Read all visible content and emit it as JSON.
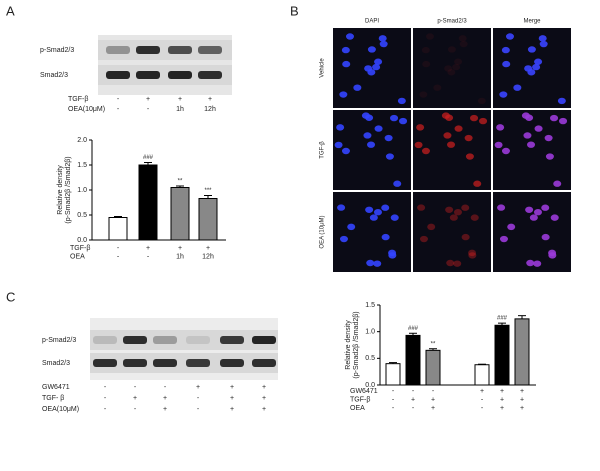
{
  "panels": {
    "A": {
      "label": "A",
      "blot_rows": [
        "p-Smad2/3",
        "Smad2/3"
      ],
      "conditions": [
        {
          "name": "TGF-β",
          "values": [
            "-",
            "+",
            "+",
            "+"
          ]
        },
        {
          "name": "OEA(10μM)",
          "values": [
            "-",
            "-",
            "1h",
            "12h"
          ]
        }
      ]
    },
    "B": {
      "label": "B",
      "columns": [
        "DAPI",
        "p-Smad2/3",
        "Merge"
      ],
      "rows": [
        "Vehicle",
        "TGF-β",
        "OEA (10μM)"
      ]
    },
    "C": {
      "label": "C",
      "blot_rows": [
        "p-Smad2/3",
        "Smad2/3"
      ],
      "conditions": [
        {
          "name": "GW6471",
          "values": [
            "-",
            "-",
            "-",
            "+",
            "+",
            "+"
          ]
        },
        {
          "name": "TGF- β",
          "values": [
            "-",
            "+",
            "+",
            "-",
            "+",
            "+"
          ]
        },
        {
          "name": "OEA(10μM)",
          "values": [
            "-",
            "-",
            "+",
            "-",
            "+",
            "+"
          ]
        }
      ]
    }
  },
  "chart_data": [
    {
      "type": "bar",
      "ylabel": [
        "Relative density",
        "(p-Smad2β /Smad2β)"
      ],
      "values": [
        0.45,
        1.5,
        1.05,
        0.83
      ],
      "errors": [
        0.02,
        0.05,
        0.03,
        0.06
      ],
      "annotations": [
        null,
        "###",
        "**",
        "***"
      ],
      "colors": [
        "#ffffff",
        "#000000",
        "#888888",
        "#888888"
      ],
      "ylim": [
        0,
        2
      ],
      "yticks": [
        {
          "value": 0,
          "label": "0.0"
        },
        0.5,
        {
          "value": 1,
          "label": "1.0"
        },
        1.5,
        {
          "value": 2,
          "label": "2.0"
        }
      ],
      "conditions": [
        {
          "name": "TGF-β",
          "values": [
            "-",
            "+",
            "+",
            "+"
          ]
        },
        {
          "name": "OEA",
          "values": [
            "-",
            "-",
            "1h",
            "12h"
          ]
        }
      ]
    },
    {
      "type": "bar",
      "ylabel": [
        "Relative density",
        "(p-Smad2β /Smad2β)"
      ],
      "values": [
        0.4,
        0.93,
        0.65,
        0.38,
        1.12,
        1.24
      ],
      "errors": [
        0.02,
        0.04,
        0.03,
        0.01,
        0.04,
        0.06
      ],
      "annotations": [
        null,
        "###",
        "**",
        null,
        "###",
        null
      ],
      "colors": [
        "#ffffff",
        "#000000",
        "#888888",
        "#ffffff",
        "#000000",
        "#888888"
      ],
      "ylim": [
        0,
        1.5
      ],
      "yticks": [
        {
          "value": 0,
          "label": "0.0"
        },
        0.5,
        {
          "value": 1,
          "label": "1.0"
        },
        1.5
      ],
      "conditions": [
        {
          "name": "GW6471",
          "values": [
            "-",
            "-",
            "-",
            "+",
            "+",
            "+"
          ]
        },
        {
          "name": "TGF-β",
          "values": [
            "-",
            "+",
            "+",
            "-",
            "+",
            "+"
          ]
        },
        {
          "name": "OEA",
          "values": [
            "-",
            "-",
            "+",
            "-",
            "+",
            "+"
          ]
        }
      ]
    }
  ]
}
